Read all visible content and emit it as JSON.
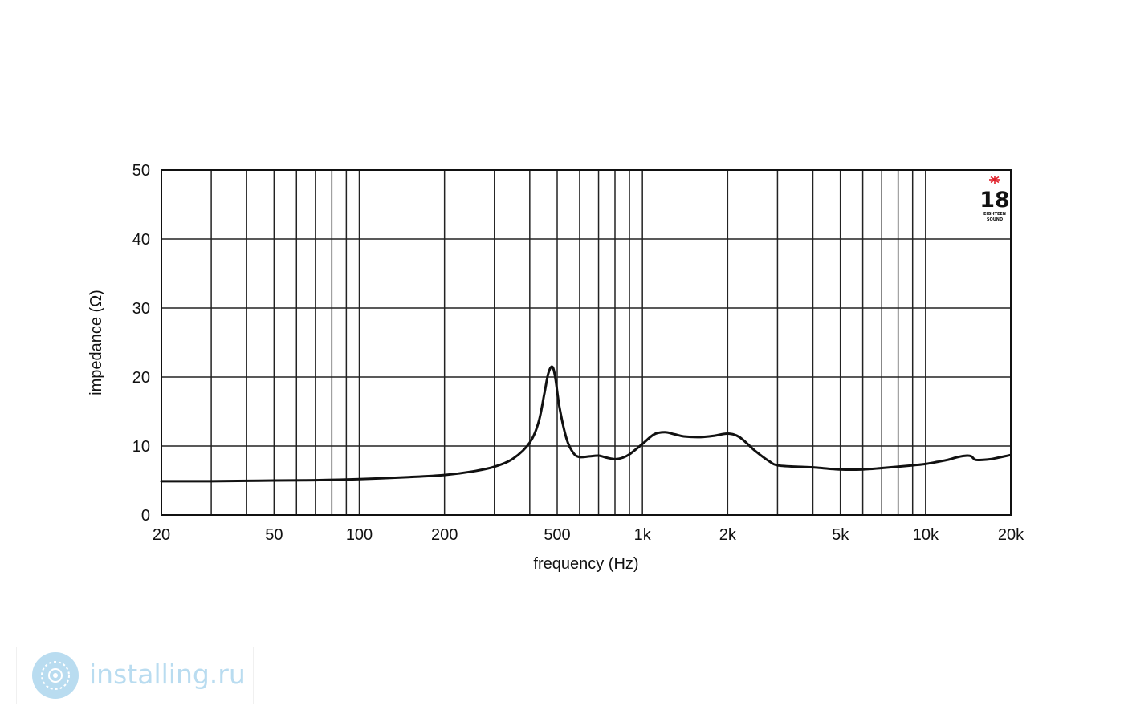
{
  "chart_data": {
    "type": "line",
    "xlabel": "frequency (Hz)",
    "ylabel": "impedance (Ω)",
    "x_scale": "log",
    "xlim": [
      20,
      20000
    ],
    "ylim": [
      0,
      50
    ],
    "grid": true,
    "x_ticks": [
      {
        "value": 20,
        "label": "20"
      },
      {
        "value": 50,
        "label": "50"
      },
      {
        "value": 100,
        "label": "100"
      },
      {
        "value": 200,
        "label": "200"
      },
      {
        "value": 500,
        "label": "500"
      },
      {
        "value": 1000,
        "label": "1k"
      },
      {
        "value": 2000,
        "label": "2k"
      },
      {
        "value": 5000,
        "label": "5k"
      },
      {
        "value": 10000,
        "label": "10k"
      },
      {
        "value": 20000,
        "label": "20k"
      }
    ],
    "y_ticks": [
      0,
      10,
      20,
      30,
      40,
      50
    ],
    "x_gridlines": [
      20,
      30,
      40,
      50,
      60,
      70,
      80,
      90,
      100,
      200,
      300,
      400,
      500,
      600,
      700,
      800,
      900,
      1000,
      2000,
      3000,
      4000,
      5000,
      6000,
      7000,
      8000,
      9000,
      10000,
      20000
    ],
    "y_gridlines": [
      0,
      10,
      20,
      30,
      40,
      50
    ],
    "series": [
      {
        "color": "#111111",
        "points": [
          [
            20,
            4.9
          ],
          [
            30,
            4.9
          ],
          [
            40,
            4.95
          ],
          [
            50,
            5.0
          ],
          [
            70,
            5.05
          ],
          [
            100,
            5.2
          ],
          [
            150,
            5.5
          ],
          [
            200,
            5.8
          ],
          [
            250,
            6.3
          ],
          [
            300,
            7.0
          ],
          [
            350,
            8.2
          ],
          [
            400,
            10.5
          ],
          [
            430,
            13.5
          ],
          [
            450,
            17.5
          ],
          [
            465,
            20.5
          ],
          [
            480,
            21.5
          ],
          [
            492,
            20.0
          ],
          [
            510,
            15.5
          ],
          [
            540,
            11.0
          ],
          [
            570,
            9.0
          ],
          [
            600,
            8.4
          ],
          [
            650,
            8.5
          ],
          [
            700,
            8.6
          ],
          [
            750,
            8.3
          ],
          [
            800,
            8.1
          ],
          [
            850,
            8.3
          ],
          [
            900,
            8.8
          ],
          [
            1000,
            10.3
          ],
          [
            1100,
            11.7
          ],
          [
            1200,
            12.0
          ],
          [
            1300,
            11.7
          ],
          [
            1400,
            11.4
          ],
          [
            1600,
            11.3
          ],
          [
            1800,
            11.5
          ],
          [
            2000,
            11.8
          ],
          [
            2200,
            11.3
          ],
          [
            2500,
            9.3
          ],
          [
            2800,
            7.8
          ],
          [
            3000,
            7.2
          ],
          [
            3500,
            7.0
          ],
          [
            4000,
            6.9
          ],
          [
            5000,
            6.6
          ],
          [
            6000,
            6.6
          ],
          [
            7000,
            6.8
          ],
          [
            8000,
            7.0
          ],
          [
            9000,
            7.2
          ],
          [
            10000,
            7.4
          ],
          [
            11000,
            7.7
          ],
          [
            12000,
            8.0
          ],
          [
            13000,
            8.4
          ],
          [
            14000,
            8.6
          ],
          [
            14500,
            8.5
          ],
          [
            15000,
            8.0
          ],
          [
            16000,
            8.0
          ],
          [
            17000,
            8.1
          ],
          [
            18000,
            8.3
          ],
          [
            19000,
            8.5
          ],
          [
            20000,
            8.7
          ]
        ]
      }
    ]
  },
  "logo": {
    "number": "18",
    "line1": "EIGHTEEN",
    "line2": "SOUND",
    "star_color": "#e0202a"
  },
  "watermark": {
    "text": "installing.ru",
    "color": "#b9dcf0"
  }
}
